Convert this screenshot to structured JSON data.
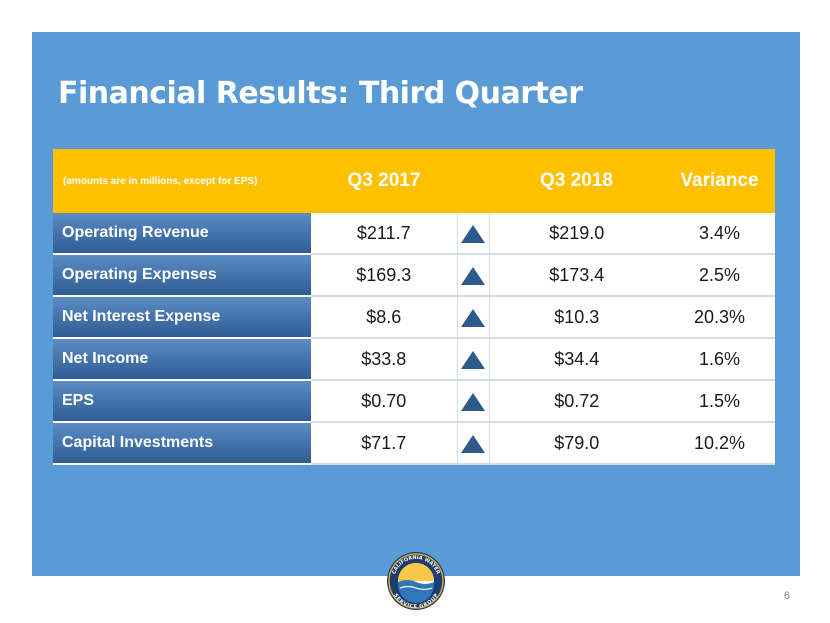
{
  "slide": {
    "title": "Financial Results: Third Quarter",
    "page_number": "6"
  },
  "table": {
    "note": "(amounts are in millions, except for EPS)",
    "headers": [
      "Q3 2017",
      "Q3 2018",
      "Variance"
    ],
    "rows": [
      {
        "label": "Operating Revenue",
        "q3_2017": "$211.7",
        "q3_2018": "$219.0",
        "variance": "3.4%",
        "trend": "up"
      },
      {
        "label": "Operating Expenses",
        "q3_2017": "$169.3",
        "q3_2018": "$173.4",
        "variance": "2.5%",
        "trend": "up"
      },
      {
        "label": "Net Interest Expense",
        "q3_2017": "$8.6",
        "q3_2018": "$10.3",
        "variance": "20.3%",
        "trend": "up"
      },
      {
        "label": "Net Income",
        "q3_2017": "$33.8",
        "q3_2018": "$34.4",
        "variance": "1.6%",
        "trend": "up"
      },
      {
        "label": "EPS",
        "q3_2017": "$0.70",
        "q3_2018": "$0.72",
        "variance": "1.5%",
        "trend": "up"
      },
      {
        "label": "Capital Investments",
        "q3_2017": "$71.7",
        "q3_2018": "$79.0",
        "variance": "10.2%",
        "trend": "up"
      }
    ]
  },
  "logo": {
    "text_top": "CALIFORNIA WATER",
    "text_bottom": "SERVICE GROUP"
  },
  "colors": {
    "panel": "#5a9bd5",
    "header": "#ffc000",
    "label_cell": "#3b6ba5",
    "arrow": "#2d5b8c"
  }
}
